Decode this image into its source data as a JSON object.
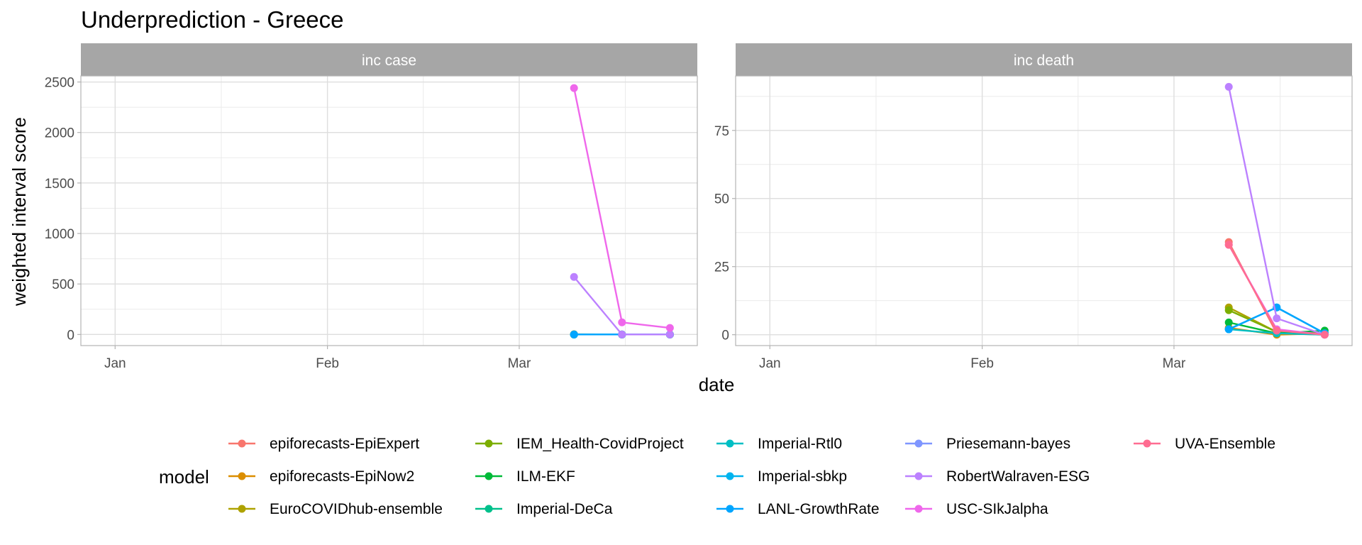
{
  "chart_data": {
    "type": "line",
    "title": "Underprediction - Greece",
    "xlabel": "date",
    "ylabel": "weighted interval score",
    "grid": true,
    "legend_placement": "bottom",
    "legend_title": "model",
    "x_ticks": [
      "Jan",
      "Feb",
      "Mar"
    ],
    "x_range": [
      "2021-12-27",
      "2022-03-27"
    ],
    "x_tick_dates": [
      "2022-01-01",
      "2022-02-01",
      "2022-03-01"
    ],
    "dates": [
      "2022-03-09",
      "2022-03-16",
      "2022-03-23"
    ],
    "models": [
      {
        "name": "epiforecasts-EpiExpert",
        "color": "#F8766D"
      },
      {
        "name": "epiforecasts-EpiNow2",
        "color": "#DB8E00"
      },
      {
        "name": "EuroCOVIDhub-ensemble",
        "color": "#AEA200"
      },
      {
        "name": "IEM_Health-CovidProject",
        "color": "#7CAE00"
      },
      {
        "name": "ILM-EKF",
        "color": "#00BA38"
      },
      {
        "name": "Imperial-DeCa",
        "color": "#00C08B"
      },
      {
        "name": "Imperial-Rtl0",
        "color": "#00BFC4"
      },
      {
        "name": "Imperial-sbkp",
        "color": "#00B4EF"
      },
      {
        "name": "LANL-GrowthRate",
        "color": "#00A5FF"
      },
      {
        "name": "Priesemann-bayes",
        "color": "#7F96FF"
      },
      {
        "name": "RobertWalraven-ESG",
        "color": "#BC81FF"
      },
      {
        "name": "USC-SIkJalpha",
        "color": "#EF67EB"
      },
      {
        "name": "UVA-Ensemble",
        "color": "#FF6C91"
      }
    ],
    "panels": [
      {
        "label": "inc case",
        "y_range": [
          -110,
          2560
        ],
        "y_ticks": [
          0,
          500,
          1000,
          1500,
          2000,
          2500
        ],
        "series": [
          {
            "name": "epiforecasts-EpiExpert",
            "values": [
              0,
              0,
              0
            ]
          },
          {
            "name": "epiforecasts-EpiNow2",
            "values": [
              2,
              0,
              0
            ]
          },
          {
            "name": "EuroCOVIDhub-ensemble",
            "values": [
              0,
              0,
              0
            ]
          },
          {
            "name": "IEM_Health-CovidProject",
            "values": [
              0,
              0,
              0
            ]
          },
          {
            "name": "ILM-EKF",
            "values": [
              0,
              0,
              0
            ]
          },
          {
            "name": "Imperial-DeCa",
            "values": [
              0,
              0,
              0
            ]
          },
          {
            "name": "Imperial-Rtl0",
            "values": [
              0,
              0,
              0
            ]
          },
          {
            "name": "Imperial-sbkp",
            "values": [
              0,
              0,
              0
            ]
          },
          {
            "name": "LANL-GrowthRate",
            "values": [
              0,
              0,
              0
            ]
          },
          {
            "name": "RobertWalraven-ESG",
            "values": [
              570,
              0,
              0
            ]
          },
          {
            "name": "USC-SIkJalpha",
            "values": [
              2440,
              120,
              65
            ]
          }
        ]
      },
      {
        "label": "inc death",
        "y_range": [
          -4,
          95
        ],
        "y_ticks": [
          0,
          25,
          50,
          75
        ],
        "series": [
          {
            "name": "epiforecasts-EpiExpert",
            "values": [
              34,
              0.5,
              0
            ]
          },
          {
            "name": "epiforecasts-EpiNow2",
            "values": [
              2.5,
              0,
              0.5
            ]
          },
          {
            "name": "EuroCOVIDhub-ensemble",
            "values": [
              10,
              1,
              0.5
            ]
          },
          {
            "name": "IEM_Health-CovidProject",
            "values": [
              9,
              1,
              0.5
            ]
          },
          {
            "name": "ILM-EKF",
            "values": [
              4.5,
              0.5,
              1.5
            ]
          },
          {
            "name": "Imperial-Rtl0",
            "values": [
              2,
              0.5,
              0
            ]
          },
          {
            "name": "Imperial-sbkp",
            "values": [
              2,
              10,
              0.5
            ]
          },
          {
            "name": "LANL-GrowthRate",
            "values": [
              2,
              10,
              0.5
            ]
          },
          {
            "name": "RobertWalraven-ESG",
            "values": [
              91,
              6,
              0
            ]
          },
          {
            "name": "USC-SIkJalpha",
            "values": [
              33,
              2,
              0
            ]
          },
          {
            "name": "UVA-Ensemble",
            "values": [
              33,
              1.5,
              0
            ]
          }
        ]
      }
    ]
  }
}
